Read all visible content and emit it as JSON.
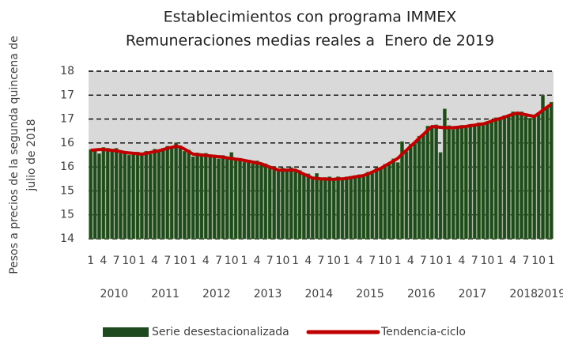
{
  "chart_data": {
    "type": "bar",
    "title": "Establecimientos con programa IMMEX",
    "subtitle": "Remuneraciones medias reales a  Enero de 2019",
    "y_label": [
      "Pesos a precios de la segunda quincena de",
      "julio de 2018"
    ],
    "categories": [
      "1",
      null,
      null,
      "4",
      null,
      null,
      "7",
      null,
      null,
      "10",
      null,
      null,
      "1",
      null,
      null,
      "4",
      null,
      null,
      "7",
      null,
      null,
      "10",
      null,
      null,
      "1",
      null,
      null,
      "4",
      null,
      null,
      "7",
      null,
      null,
      "10",
      null,
      null,
      "1",
      null,
      null,
      "4",
      null,
      null,
      "7",
      null,
      null,
      "10",
      null,
      null,
      "1",
      null,
      null,
      "4",
      null,
      null,
      "7",
      null,
      null,
      "10",
      null,
      null,
      "1",
      null,
      null,
      "4",
      null,
      null,
      "7",
      null,
      null,
      "10",
      null,
      null,
      "1",
      null,
      null,
      "4",
      null,
      null,
      "7",
      null,
      null,
      "10",
      null,
      null,
      "1",
      null,
      null,
      "4",
      null,
      null,
      "7",
      null,
      null,
      "10",
      null,
      null,
      "1",
      null,
      null,
      "4",
      null,
      null,
      "7",
      null,
      null,
      "10",
      null,
      null,
      "1"
    ],
    "years": [
      "2010",
      "2011",
      "2012",
      "2013",
      "2014",
      "2015",
      "2016",
      "2017",
      "2018",
      "2019"
    ],
    "ylim": [
      14,
      18
    ],
    "yticks": [
      14,
      {
        "value": 14.571,
        "label": "15"
      },
      {
        "value": 15.143,
        "label": "15"
      },
      {
        "value": 15.714,
        "label": "16"
      },
      {
        "value": 16.286,
        "label": "16"
      },
      {
        "value": 16.857,
        "label": "17"
      },
      {
        "value": 17.429,
        "label": "17"
      },
      18
    ],
    "grid": true,
    "legend": "bottom",
    "series": [
      {
        "name": "Serie desestacionalizada",
        "type": "bar",
        "color": "#1f4a1f",
        "values": [
          16.13,
          16.09,
          16.03,
          16.18,
          16.16,
          16.09,
          16.16,
          16.04,
          16.09,
          16.0,
          16.06,
          16.07,
          15.99,
          16.09,
          16.02,
          16.14,
          16.08,
          16.16,
          16.21,
          16.15,
          16.29,
          16.22,
          16.09,
          16.12,
          15.96,
          16.05,
          15.97,
          16.04,
          15.96,
          16.0,
          15.91,
          15.99,
          15.9,
          16.06,
          15.88,
          15.92,
          15.83,
          15.88,
          15.79,
          15.86,
          15.77,
          15.79,
          15.68,
          15.73,
          15.62,
          15.69,
          15.61,
          15.7,
          15.6,
          15.63,
          15.52,
          15.55,
          15.42,
          15.56,
          15.41,
          15.46,
          15.48,
          15.39,
          15.48,
          15.41,
          15.48,
          15.49,
          15.46,
          15.53,
          15.48,
          15.59,
          15.56,
          15.69,
          15.66,
          15.78,
          15.77,
          15.91,
          15.82,
          16.32,
          16.08,
          16.26,
          16.26,
          16.45,
          16.47,
          16.69,
          16.66,
          16.72,
          16.06,
          17.1,
          16.7,
          16.61,
          16.69,
          16.71,
          16.65,
          16.73,
          16.69,
          16.77,
          16.71,
          16.8,
          16.78,
          16.89,
          16.85,
          16.94,
          16.92,
          17.03,
          16.97,
          17.03,
          16.92,
          16.88,
          16.96,
          17.01,
          17.43,
          17.12,
          17.26
        ]
      },
      {
        "name": "Tendencia-ciclo",
        "type": "line",
        "color": "#c00000",
        "values": [
          16.11,
          16.12,
          16.13,
          16.13,
          16.12,
          16.11,
          16.1,
          16.08,
          16.06,
          16.05,
          16.04,
          16.03,
          16.02,
          16.04,
          16.06,
          16.08,
          16.1,
          16.13,
          16.16,
          16.18,
          16.21,
          16.19,
          16.14,
          16.08,
          16.02,
          16.01,
          16.0,
          15.99,
          15.98,
          15.97,
          15.96,
          15.95,
          15.93,
          15.92,
          15.9,
          15.89,
          15.87,
          15.85,
          15.83,
          15.81,
          15.79,
          15.75,
          15.71,
          15.68,
          15.64,
          15.64,
          15.64,
          15.64,
          15.64,
          15.59,
          15.54,
          15.5,
          15.45,
          15.44,
          15.43,
          15.43,
          15.42,
          15.42,
          15.43,
          15.43,
          15.44,
          15.46,
          15.48,
          15.49,
          15.51,
          15.55,
          15.59,
          15.64,
          15.68,
          15.74,
          15.8,
          15.86,
          15.92,
          16.02,
          16.11,
          16.21,
          16.3,
          16.4,
          16.49,
          16.59,
          16.68,
          16.67,
          16.66,
          16.65,
          16.65,
          16.65,
          16.66,
          16.67,
          16.68,
          16.7,
          16.71,
          16.73,
          16.74,
          16.77,
          16.81,
          16.84,
          16.87,
          16.9,
          16.94,
          16.97,
          17.0,
          16.98,
          16.96,
          16.94,
          16.92,
          16.99,
          17.07,
          17.14,
          17.21
        ]
      }
    ]
  }
}
